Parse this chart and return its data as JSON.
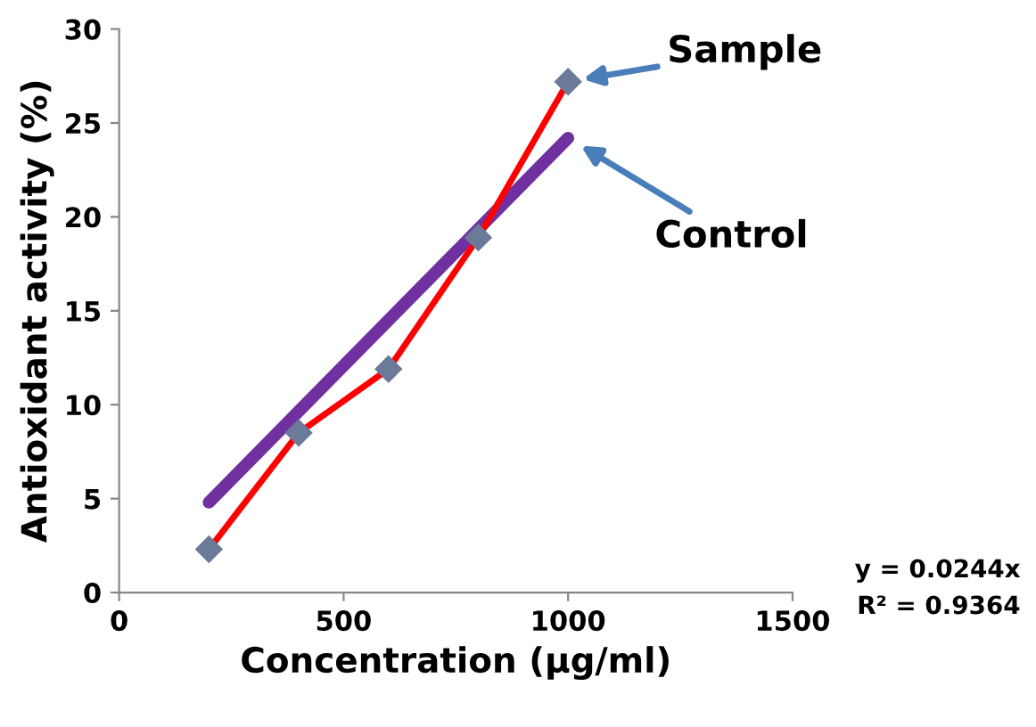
{
  "chart_data": {
    "type": "line",
    "xlabel": "Concentration (µg/ml)",
    "ylabel": "Antioxidant activity (%)",
    "x": [
      200,
      400,
      600,
      800,
      1000
    ],
    "series": [
      {
        "name": "Sample",
        "color": "#ff0000",
        "marker": "diamond",
        "values": [
          2.3,
          8.5,
          11.9,
          18.9,
          27.2
        ]
      },
      {
        "name": "Control",
        "color": "#7030a0",
        "marker": "none",
        "x": [
          200,
          1000
        ],
        "values": [
          4.8,
          24.2
        ]
      }
    ],
    "annotations": [
      "y = 0.0244x",
      "R² = 0.9364"
    ],
    "xlim": [
      0,
      1500
    ],
    "xticks": [
      0,
      500,
      1000,
      1500
    ],
    "ylim": [
      0,
      30
    ],
    "yticks": [
      0,
      5,
      10,
      15,
      20,
      25,
      30
    ],
    "grid": false,
    "legend": false
  }
}
